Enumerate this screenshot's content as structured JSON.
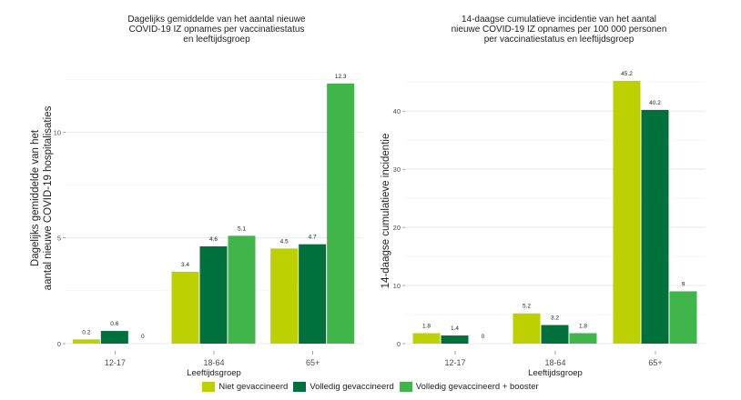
{
  "chart_data": [
    {
      "type": "bar",
      "title": "Dagelijks gemiddelde van het aantal nieuwe COVID-19 IZ opnames per vaccinatiestatus en leeftijdsgroep",
      "title_lines": [
        "Dagelijks gemiddelde van het aantal nieuwe",
        "COVID-19 IZ opnames per vaccinatiestatus",
        "en leeftijdsgroep"
      ],
      "xlabel": "Leeftijdsgroep",
      "ylabel": "Dagelijks gemiddelde van het aantal nieuwe COVID-19 hospitalisaties",
      "ylabel_lines": [
        "Dagelijks gemiddelde van het",
        "aantal nieuwe COVID-19 hospitalisaties"
      ],
      "categories": [
        "12-17",
        "18-64",
        "65+"
      ],
      "ylim": [
        0,
        13.2
      ],
      "yticks": [
        0,
        5,
        10
      ],
      "ytick_labels": [
        "0",
        "5",
        "10"
      ],
      "grid": true,
      "series": [
        {
          "name": "Niet gevaccineerd",
          "values": [
            0.2,
            3.4,
            4.5
          ],
          "labels": [
            "0.2",
            "3.4",
            "4.5"
          ],
          "color": "#bdd100"
        },
        {
          "name": "Volledig gevaccineerd",
          "values": [
            0.6,
            4.6,
            4.7
          ],
          "labels": [
            "0.6",
            "4.6",
            "4.7"
          ],
          "color": "#00703c"
        },
        {
          "name": "Volledig gevaccineerd + booster",
          "values": [
            0,
            5.1,
            12.3
          ],
          "labels": [
            "0",
            "5.1",
            "12.3"
          ],
          "color": "#3fb54a"
        }
      ]
    },
    {
      "type": "bar",
      "title": "14-daagse cumulatieve incidentie van het aantal nieuwe COVID-19 IZ opnames per 100 000 personen per vaccinatiestatus en leeftijdsgroep",
      "title_lines": [
        "14-daagse cumulatieve incidentie van het aantal",
        "nieuwe COVID-19 IZ opnames per 100 000 personen",
        "per vaccinatiestatus en leeftijdsgroep"
      ],
      "xlabel": "Leeftijdsgroep",
      "ylabel": "14-daagse cumulatieve incidentie",
      "ylabel_lines": [
        "14-daagse cumulatieve incidentie"
      ],
      "categories": [
        "12-17",
        "18-64",
        "65+"
      ],
      "ylim": [
        0,
        48
      ],
      "yticks": [
        0,
        10,
        20,
        30,
        40
      ],
      "ytick_labels": [
        "0",
        "10",
        "20",
        "30",
        "40"
      ],
      "grid": true,
      "series": [
        {
          "name": "Niet gevaccineerd",
          "values": [
            1.8,
            5.2,
            45.2
          ],
          "labels": [
            "1.8",
            "5.2",
            "45.2"
          ],
          "color": "#bdd100"
        },
        {
          "name": "Volledig gevaccineerd",
          "values": [
            1.4,
            3.2,
            40.2
          ],
          "labels": [
            "1.4",
            "3.2",
            "40.2"
          ],
          "color": "#00703c"
        },
        {
          "name": "Volledig gevaccineerd + booster",
          "values": [
            0,
            1.8,
            9
          ],
          "labels": [
            "0",
            "1.8",
            "9"
          ],
          "color": "#3fb54a"
        }
      ]
    }
  ],
  "legend": {
    "position": "bottom",
    "items": [
      {
        "label": "Niet gevaccineerd",
        "color": "#bdd100"
      },
      {
        "label": "Volledig gevaccineerd",
        "color": "#00703c"
      },
      {
        "label": "Volledig gevaccineerd + booster",
        "color": "#3fb54a"
      }
    ]
  }
}
